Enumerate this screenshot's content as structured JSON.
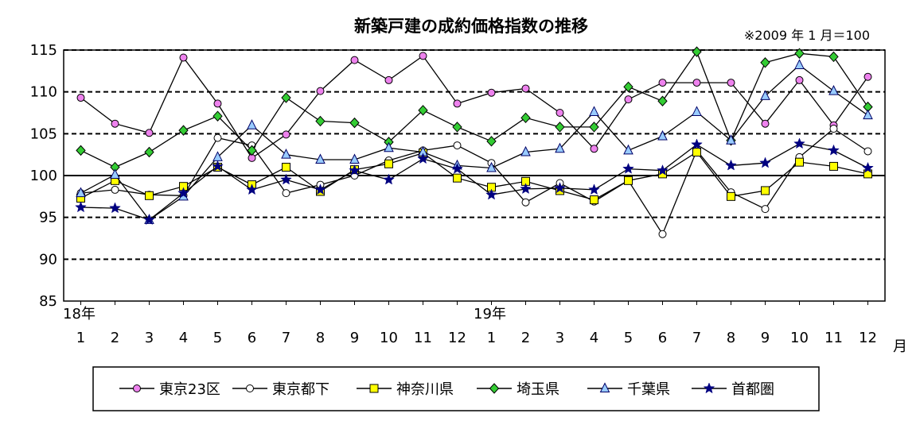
{
  "chart_data": {
    "type": "line",
    "title": "新築戸建の成約価格指数の推移",
    "note": "※2009 年 1 月＝100",
    "x_unit": "月",
    "categories": [
      "1",
      "2",
      "3",
      "4",
      "5",
      "6",
      "7",
      "8",
      "9",
      "10",
      "11",
      "12",
      "1",
      "2",
      "3",
      "4",
      "5",
      "6",
      "7",
      "8",
      "9",
      "10",
      "11",
      "12"
    ],
    "year_labels": [
      {
        "label": "18年",
        "index": 0
      },
      {
        "label": "19年",
        "index": 12
      }
    ],
    "ylim": [
      85,
      115
    ],
    "yticks": [
      "85",
      "90",
      "95",
      "100",
      "105",
      "110",
      "115"
    ],
    "y_step": 5,
    "baseline": 100,
    "grid": "dashed",
    "legend_position": "bottom",
    "series": [
      {
        "name": "東京23区",
        "marker": "circle",
        "color": "#ee82ee",
        "values": [
          109.3,
          106.2,
          105.1,
          114.1,
          108.6,
          102.1,
          104.9,
          110.1,
          113.8,
          111.4,
          114.3,
          108.6,
          109.9,
          110.4,
          107.5,
          103.2,
          109.1,
          111.1,
          111.1,
          111.1,
          106.2,
          111.4,
          106.0,
          111.8
        ]
      },
      {
        "name": "東京都下",
        "marker": "circle",
        "color": "#ffffff",
        "values": [
          97.9,
          98.3,
          97.7,
          97.6,
          104.5,
          103.6,
          97.9,
          98.9,
          100.0,
          101.8,
          103.0,
          103.6,
          101.5,
          96.8,
          99.1,
          96.9,
          99.4,
          93.0,
          103.0,
          98.0,
          96.0,
          102.2,
          105.6,
          102.9
        ]
      },
      {
        "name": "神奈川県",
        "marker": "square",
        "color": "#ffff00",
        "values": [
          97.3,
          99.4,
          97.6,
          98.7,
          101.0,
          98.9,
          101.0,
          98.1,
          100.7,
          101.4,
          102.7,
          99.7,
          98.6,
          99.3,
          98.2,
          97.1,
          99.4,
          100.2,
          102.8,
          97.5,
          98.2,
          101.6,
          101.1,
          100.2
        ]
      },
      {
        "name": "埼玉県",
        "marker": "diamond",
        "color": "#33cc33",
        "values": [
          103.0,
          101.0,
          102.8,
          105.4,
          107.1,
          103.0,
          109.3,
          106.5,
          106.3,
          104.0,
          107.8,
          105.8,
          104.1,
          106.9,
          105.8,
          105.8,
          110.6,
          108.9,
          114.8,
          104.2,
          113.5,
          114.6,
          114.2,
          108.2
        ]
      },
      {
        "name": "千葉県",
        "marker": "triangle",
        "color": "#99ccff",
        "values": [
          97.9,
          100.1,
          94.7,
          97.5,
          102.2,
          106.0,
          102.5,
          101.9,
          101.9,
          103.3,
          102.8,
          101.2,
          100.9,
          102.8,
          103.2,
          107.6,
          103.0,
          104.7,
          107.6,
          104.2,
          109.5,
          113.2,
          110.1,
          107.2
        ]
      },
      {
        "name": "首都圏",
        "marker": "star",
        "color": "#000080",
        "values": [
          96.2,
          96.1,
          94.7,
          97.9,
          101.1,
          98.3,
          99.5,
          98.3,
          100.6,
          99.5,
          102.0,
          100.8,
          97.7,
          98.4,
          98.5,
          98.3,
          100.8,
          100.6,
          103.7,
          101.2,
          101.5,
          103.8,
          103.0,
          100.9
        ]
      }
    ]
  }
}
